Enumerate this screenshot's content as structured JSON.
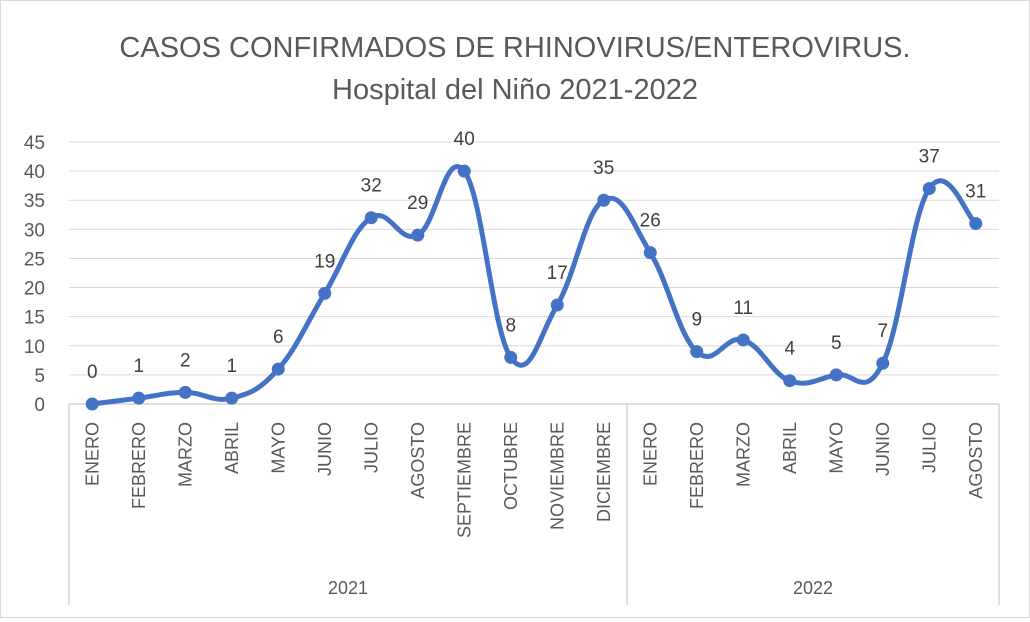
{
  "chart_data": {
    "type": "line",
    "smooth": true,
    "title_lines": [
      "CASOS CONFIRMADOS DE RHINOVIRUS/ENTEROVIRUS.",
      "Hospital del Niño 2021-2022"
    ],
    "categories": [
      "ENERO",
      "FEBRERO",
      "MARZO",
      "ABRIL",
      "MAYO",
      "JUNIO",
      "JULIO",
      "AGOSTO",
      "SEPTIEMBRE",
      "OCTUBRE",
      "NOVIEMBRE",
      "DICIEMBRE",
      "ENERO",
      "FEBRERO",
      "MARZO",
      "ABRIL",
      "MAYO",
      "JUNIO",
      "JULIO",
      "AGOSTO"
    ],
    "category_groups": [
      {
        "label": "2021",
        "count": 12
      },
      {
        "label": "2022",
        "count": 8
      }
    ],
    "series": [
      {
        "values": [
          0,
          1,
          2,
          1,
          6,
          19,
          32,
          29,
          40,
          8,
          17,
          35,
          26,
          9,
          11,
          4,
          5,
          7,
          37,
          31
        ],
        "color": "#4472c4"
      }
    ],
    "ylim": [
      0,
      45
    ],
    "yticks": [
      0,
      5,
      10,
      15,
      20,
      25,
      30,
      35,
      40,
      45
    ],
    "grid": true,
    "data_labels": true,
    "legend": "none",
    "xlabel": "",
    "ylabel": ""
  }
}
